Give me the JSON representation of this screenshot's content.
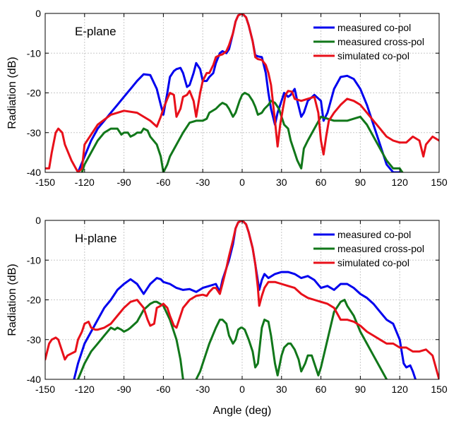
{
  "chart_data": [
    {
      "type": "line",
      "title": "",
      "panel_label": "E-plane",
      "xlabel": "",
      "ylabel": "Radiation (dB)",
      "xlim": [
        -150,
        150
      ],
      "ylim": [
        -40,
        0
      ],
      "xticks": [
        -150,
        -120,
        -90,
        -60,
        -30,
        0,
        30,
        60,
        90,
        120,
        150
      ],
      "yticks": [
        0,
        -10,
        -20,
        -30,
        -40
      ],
      "grid": true,
      "legend_position": "top-right",
      "series": [
        {
          "name": "measured co-pol",
          "color": "#0000ee",
          "x": [
            -125,
            -120,
            -115,
            -110,
            -105,
            -100,
            -95,
            -90,
            -85,
            -80,
            -75,
            -70,
            -65,
            -62,
            -60,
            -57,
            -55,
            -52,
            -50,
            -47,
            -45,
            -42,
            -40,
            -37,
            -35,
            -32,
            -30,
            -27,
            -25,
            -22,
            -20,
            -17,
            -15,
            -12,
            -10,
            -7,
            -5,
            -3,
            0,
            3,
            5,
            8,
            10,
            12,
            15,
            18,
            20,
            22,
            25,
            27,
            30,
            32,
            35,
            37,
            40,
            42,
            45,
            47,
            50,
            55,
            60,
            62,
            65,
            70,
            75,
            80,
            85,
            90,
            95,
            100,
            105,
            110,
            115,
            120
          ],
          "y": [
            -40,
            -36,
            -32,
            -29,
            -27,
            -25,
            -23,
            -21,
            -19,
            -17,
            -15.3,
            -15.5,
            -19,
            -23,
            -25.5,
            -20,
            -16,
            -14.5,
            -14,
            -13.7,
            -15,
            -18.5,
            -18,
            -15,
            -12.5,
            -14,
            -17,
            -17,
            -16,
            -15,
            -12.5,
            -10,
            -9.5,
            -10,
            -9,
            -5,
            -2,
            -0.5,
            0,
            -1,
            -3,
            -7,
            -10.5,
            -10.8,
            -11,
            -15,
            -20,
            -24,
            -28,
            -25,
            -22,
            -20,
            -21,
            -20.5,
            -19,
            -22,
            -26,
            -25,
            -22,
            -20.5,
            -22,
            -27,
            -25,
            -19,
            -16,
            -15.7,
            -16.5,
            -19,
            -23,
            -28,
            -33,
            -38,
            -40,
            -40
          ]
        },
        {
          "name": "measured cross-pol",
          "color": "#11771a",
          "x": [
            -122,
            -120,
            -115,
            -110,
            -105,
            -100,
            -95,
            -92,
            -90,
            -87,
            -85,
            -82,
            -80,
            -77,
            -75,
            -72,
            -70,
            -65,
            -62,
            -60,
            -57,
            -55,
            -50,
            -45,
            -40,
            -35,
            -30,
            -27,
            -25,
            -20,
            -17,
            -15,
            -12,
            -10,
            -7,
            -5,
            -2,
            0,
            2,
            5,
            8,
            10,
            12,
            15,
            17,
            20,
            22,
            25,
            28,
            30,
            32,
            35,
            37,
            40,
            42,
            45,
            47,
            50,
            55,
            60,
            65,
            70,
            75,
            80,
            85,
            90,
            95,
            100,
            105,
            110,
            115,
            120,
            122
          ],
          "y": [
            -40,
            -38,
            -35,
            -32,
            -30,
            -29,
            -29,
            -30.5,
            -30,
            -30,
            -31,
            -30.5,
            -30,
            -30,
            -29,
            -29.5,
            -31,
            -33,
            -36,
            -40,
            -38,
            -36,
            -33,
            -30,
            -27.5,
            -27,
            -27,
            -26.5,
            -25,
            -24,
            -23,
            -22.5,
            -23,
            -24,
            -26,
            -25,
            -22,
            -20.5,
            -20,
            -20.5,
            -22,
            -23.5,
            -25.5,
            -25,
            -24,
            -23,
            -22,
            -22.5,
            -24,
            -26,
            -28,
            -29,
            -32,
            -35,
            -37,
            -39,
            -34,
            -32,
            -29,
            -26,
            -26.5,
            -27,
            -27,
            -27,
            -26.5,
            -26,
            -28,
            -31,
            -34,
            -37,
            -39,
            -39,
            -40
          ]
        },
        {
          "name": "simulated co-pol",
          "color": "#e8101a",
          "x": [
            -150,
            -147,
            -145,
            -142,
            -140,
            -137,
            -135,
            -130,
            -125,
            -122,
            -120,
            -110,
            -100,
            -90,
            -80,
            -70,
            -65,
            -62,
            -60,
            -57,
            -55,
            -52,
            -50,
            -47,
            -45,
            -42,
            -40,
            -37,
            -35,
            -32,
            -30,
            -27,
            -25,
            -22,
            -20,
            -17,
            -15,
            -12,
            -10,
            -7,
            -5,
            -3,
            0,
            3,
            5,
            8,
            10,
            12,
            15,
            18,
            20,
            22,
            25,
            27,
            29,
            31,
            33,
            35,
            38,
            40,
            45,
            50,
            55,
            58,
            60,
            62,
            64,
            66,
            70,
            75,
            80,
            85,
            90,
            95,
            100,
            105,
            110,
            115,
            120,
            125,
            130,
            135,
            138,
            140,
            145,
            150
          ],
          "y": [
            -39,
            -39,
            -35,
            -30,
            -29,
            -30,
            -33,
            -37,
            -40,
            -39,
            -33,
            -28,
            -25.5,
            -24.5,
            -25,
            -27,
            -28.5,
            -26,
            -24,
            -21.5,
            -20,
            -20.5,
            -26,
            -24,
            -21,
            -20.5,
            -19.5,
            -22,
            -26,
            -20,
            -17,
            -15,
            -15,
            -13,
            -11,
            -10.5,
            -10.3,
            -9.5,
            -8,
            -5,
            -2,
            -0.5,
            0,
            -1,
            -3,
            -7,
            -11,
            -11.5,
            -11.7,
            -13,
            -15,
            -18,
            -27,
            -33.5,
            -28,
            -24,
            -20.5,
            -19.5,
            -19.7,
            -21.5,
            -22,
            -21.5,
            -21,
            -25,
            -32,
            -35.5,
            -31,
            -27,
            -25,
            -23,
            -21.5,
            -22,
            -23,
            -25,
            -27,
            -29,
            -31,
            -32,
            -32.5,
            -32.5,
            -31,
            -32,
            -36,
            -33,
            -31,
            -32
          ]
        }
      ]
    },
    {
      "type": "line",
      "title": "",
      "panel_label": "H-plane",
      "xlabel": "Angle (deg)",
      "ylabel": "Radiation (dB)",
      "xlim": [
        -150,
        150
      ],
      "ylim": [
        -40,
        0
      ],
      "xticks": [
        -150,
        -120,
        -90,
        -60,
        -30,
        0,
        30,
        60,
        90,
        120,
        150
      ],
      "yticks": [
        0,
        -10,
        -20,
        -30,
        -40
      ],
      "grid": true,
      "legend_position": "top-right",
      "series": [
        {
          "name": "measured co-pol",
          "color": "#0000ee",
          "x": [
            -128,
            -125,
            -120,
            -115,
            -110,
            -105,
            -100,
            -95,
            -90,
            -85,
            -80,
            -77,
            -75,
            -72,
            -70,
            -65,
            -62,
            -60,
            -55,
            -50,
            -45,
            -40,
            -35,
            -30,
            -25,
            -20,
            -17,
            -15,
            -12,
            -10,
            -7,
            -5,
            -3,
            0,
            3,
            5,
            8,
            10,
            13,
            15,
            17,
            20,
            25,
            30,
            35,
            40,
            45,
            50,
            55,
            60,
            65,
            70,
            75,
            80,
            85,
            90,
            95,
            100,
            105,
            110,
            115,
            120,
            123,
            125,
            128,
            130,
            132
          ],
          "y": [
            -40,
            -36,
            -31,
            -28,
            -25,
            -22,
            -20,
            -17.5,
            -16,
            -14.8,
            -16,
            -17.5,
            -18.5,
            -17,
            -16,
            -14.5,
            -14.8,
            -15.5,
            -16,
            -17,
            -17.5,
            -17.3,
            -18,
            -17,
            -16.5,
            -16,
            -18,
            -15,
            -12,
            -10,
            -6,
            -2,
            -0.5,
            0,
            -1,
            -3,
            -7,
            -11,
            -17.5,
            -15,
            -13.5,
            -14.5,
            -13.5,
            -13,
            -13,
            -13.5,
            -14.5,
            -14,
            -15,
            -17,
            -16.5,
            -17.5,
            -16,
            -16,
            -17,
            -18.5,
            -19.5,
            -21,
            -23,
            -25,
            -26,
            -30,
            -36,
            -37,
            -36.5,
            -38,
            -40
          ]
        },
        {
          "name": "measured cross-pol",
          "color": "#11771a",
          "x": [
            -125,
            -120,
            -115,
            -110,
            -105,
            -100,
            -97,
            -95,
            -92,
            -90,
            -87,
            -85,
            -80,
            -75,
            -70,
            -67,
            -65,
            -60,
            -55,
            -50,
            -47,
            -45,
            -42,
            -40,
            -37,
            -35,
            -32,
            -30,
            -25,
            -20,
            -17,
            -15,
            -12,
            -10,
            -7,
            -5,
            -3,
            -1,
            0,
            2,
            5,
            8,
            10,
            12,
            14,
            15,
            17,
            20,
            22,
            25,
            27,
            30,
            32,
            35,
            37,
            40,
            43,
            45,
            48,
            50,
            53,
            55,
            58,
            60,
            65,
            70,
            75,
            78,
            80,
            85,
            90,
            95,
            100,
            105,
            110
          ],
          "y": [
            -40,
            -36,
            -33,
            -31,
            -29,
            -27,
            -27.5,
            -27,
            -27.5,
            -28,
            -27.5,
            -27,
            -25.5,
            -22.5,
            -21,
            -20.5,
            -20.5,
            -21.5,
            -25,
            -30,
            -35,
            -40,
            -45,
            -55,
            -45,
            -40,
            -38,
            -36,
            -31,
            -27,
            -25,
            -25,
            -26,
            -29,
            -31,
            -30,
            -27.5,
            -27,
            -27,
            -27.5,
            -30,
            -33,
            -37,
            -36,
            -30,
            -27,
            -25,
            -25.5,
            -29,
            -36,
            -39,
            -34,
            -32,
            -31,
            -31,
            -32.5,
            -35,
            -38,
            -36,
            -34,
            -34,
            -36,
            -39,
            -37,
            -30,
            -23,
            -20.5,
            -20,
            -21.5,
            -24,
            -28,
            -31,
            -34,
            -37,
            -40
          ]
        },
        {
          "name": "simulated co-pol",
          "color": "#e8101a",
          "x": [
            -150,
            -147,
            -145,
            -142,
            -140,
            -137,
            -135,
            -133,
            -130,
            -127,
            -125,
            -122,
            -120,
            -117,
            -115,
            -112,
            -110,
            -105,
            -100,
            -95,
            -90,
            -85,
            -80,
            -75,
            -72,
            -70,
            -67,
            -65,
            -62,
            -60,
            -57,
            -55,
            -52,
            -50,
            -45,
            -40,
            -35,
            -30,
            -27,
            -25,
            -22,
            -20,
            -17,
            -15,
            -12,
            -10,
            -7,
            -5,
            -3,
            0,
            3,
            5,
            8,
            10,
            12,
            13,
            15,
            17,
            20,
            25,
            30,
            35,
            40,
            45,
            50,
            55,
            60,
            65,
            70,
            75,
            80,
            85,
            90,
            95,
            100,
            105,
            110,
            115,
            120,
            125,
            130,
            135,
            140,
            145,
            150
          ],
          "y": [
            -35,
            -31,
            -30,
            -29.5,
            -30,
            -33,
            -35,
            -34,
            -33.5,
            -33,
            -30,
            -28,
            -26,
            -25.5,
            -27,
            -27.5,
            -27.5,
            -27,
            -26,
            -24,
            -22,
            -20.5,
            -20,
            -22,
            -25,
            -26.5,
            -26,
            -22,
            -21.5,
            -21,
            -22,
            -24,
            -26.5,
            -27,
            -22,
            -20,
            -19,
            -18.7,
            -19,
            -18,
            -17,
            -17,
            -18.5,
            -16,
            -12,
            -9,
            -5,
            -2,
            -0.5,
            0,
            -1,
            -3,
            -7,
            -11,
            -17,
            -21.5,
            -19,
            -17,
            -15.5,
            -15.5,
            -16,
            -16.5,
            -17,
            -18.5,
            -19.5,
            -20,
            -20.5,
            -21,
            -22,
            -25,
            -25,
            -25.5,
            -26.5,
            -28,
            -29,
            -30,
            -31,
            -31,
            -32,
            -32,
            -33,
            -33,
            -32.5,
            -34,
            -40
          ]
        }
      ]
    }
  ]
}
